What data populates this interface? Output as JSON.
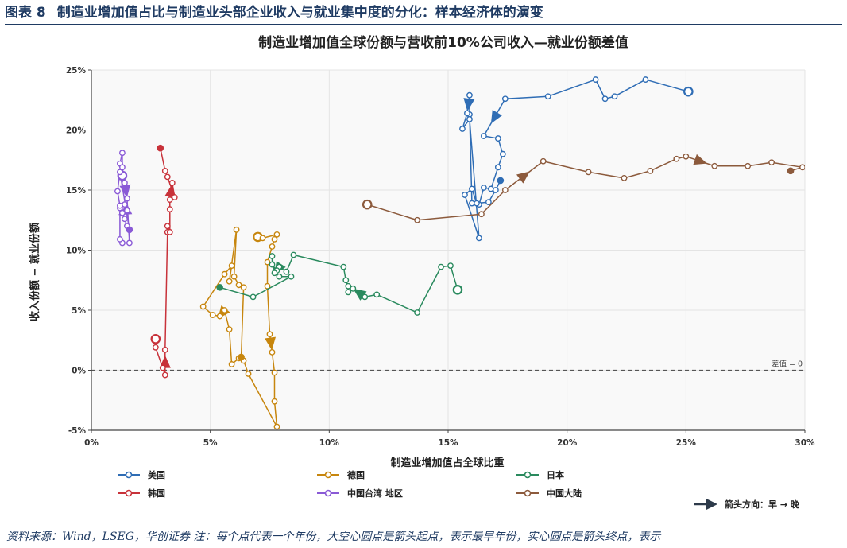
{
  "header": {
    "figure_label": "图表 8",
    "figure_title": "制造业增加值占比与制造业头部企业收入与就业集中度的分化：样本经济体的演变"
  },
  "footer": {
    "source_text": "资料来源：Wind，LSEG，华创证券   注：每个点代表一个年份，大空心圆点是箭头起点，表示最早年份，实心圆点是箭头终点，表示"
  },
  "colors": {
    "us": "#2f6db5",
    "de": "#c7860e",
    "jp": "#2a8a5e",
    "kr": "#c8323a",
    "tw": "#8a5ad6",
    "cn": "#8c5a3c",
    "zero_line": "#555555",
    "plot_bg": "#f9f9f9",
    "grid": "#e4e4e4"
  },
  "chart_data": {
    "type": "line",
    "title": "制造业增加值全球份额与营收前10%公司收入—就业份额差值",
    "xlabel": "制造业增加值占全球比重",
    "ylabel": "收入份额 − 就业份额",
    "xlim": [
      0,
      30
    ],
    "ylim": [
      -5,
      25
    ],
    "x_ticks": [
      "0%",
      "5%",
      "10%",
      "15%",
      "20%",
      "25%",
      "30%"
    ],
    "y_ticks": [
      "-5%",
      "0%",
      "5%",
      "10%",
      "15%",
      "20%",
      "25%"
    ],
    "grid": true,
    "reference_line": {
      "y": 0,
      "label": "差值 = 0"
    },
    "arrow_note": "箭头方向：早 → 晚",
    "legend_position": "bottom",
    "series": [
      {
        "name": "美国",
        "color_key": "us",
        "x": [
          25.1,
          23.3,
          22.0,
          21.6,
          21.2,
          19.2,
          17.4,
          16.5,
          17.1,
          17.3,
          17.1,
          16.8,
          16.5,
          16.3,
          16.0,
          15.9,
          15.9,
          15.8,
          15.6,
          15.9,
          16.3,
          15.7,
          16.0,
          16.2,
          16.7,
          17.0,
          17.2
        ],
        "y": [
          23.2,
          24.2,
          22.8,
          22.6,
          24.2,
          22.8,
          22.6,
          19.5,
          19.3,
          18.0,
          16.9,
          15.1,
          15.2,
          13.8,
          13.9,
          21.3,
          22.9,
          21.4,
          20.1,
          20.9,
          11.0,
          14.6,
          15.1,
          13.9,
          14.0,
          15.0,
          15.8
        ]
      },
      {
        "name": "德国",
        "color_key": "de",
        "x": [
          7.0,
          7.2,
          7.8,
          7.7,
          7.6,
          7.4,
          7.4,
          7.5,
          7.6,
          7.7,
          7.7,
          7.8,
          6.6,
          6.4,
          6.2,
          5.9,
          5.8,
          5.6,
          5.4,
          5.1,
          4.7,
          5.6,
          5.9,
          5.8,
          6.1,
          6.0,
          6.2,
          6.4,
          6.3
        ],
        "y": [
          11.1,
          11.0,
          11.3,
          10.9,
          10.3,
          9.0,
          7.0,
          3.0,
          1.5,
          -0.2,
          -2.6,
          -4.7,
          -0.3,
          0.8,
          1.0,
          0.5,
          3.4,
          5.0,
          4.5,
          4.6,
          5.3,
          8.0,
          8.7,
          7.4,
          11.7,
          7.8,
          7.1,
          6.9,
          1.1
        ]
      },
      {
        "name": "日本",
        "color_key": "jp",
        "x": [
          15.4,
          15.1,
          14.7,
          13.7,
          12.0,
          11.5,
          11.0,
          10.8,
          10.8,
          10.7,
          10.6,
          8.5,
          8.2,
          7.9,
          7.8,
          7.6,
          7.6,
          7.7,
          7.9,
          8.4,
          6.8,
          5.4
        ],
        "y": [
          6.7,
          8.7,
          8.6,
          4.8,
          6.3,
          6.1,
          6.8,
          6.5,
          7.0,
          7.5,
          8.6,
          9.6,
          8.2,
          8.6,
          8.3,
          8.8,
          9.5,
          8.1,
          7.8,
          7.8,
          6.1,
          6.9
        ]
      },
      {
        "name": "韩国",
        "color_key": "kr",
        "x": [
          2.7,
          2.7,
          3.0,
          3.1,
          3.1,
          3.2,
          3.2,
          3.3,
          3.3,
          3.3,
          3.4,
          3.5,
          3.2,
          3.1,
          2.9
        ],
        "y": [
          2.6,
          1.9,
          0.2,
          -0.4,
          1.7,
          11.5,
          12.0,
          11.5,
          13.4,
          14.2,
          15.6,
          14.4,
          16.1,
          16.6,
          18.5
        ]
      },
      {
        "name": "中国台湾 地区",
        "color_key": "tw",
        "x": [
          1.3,
          1.2,
          1.3,
          1.3,
          1.4,
          1.5,
          1.6,
          1.3,
          1.2,
          1.2,
          1.4,
          1.5,
          1.3,
          1.4,
          1.5,
          1.2,
          1.1,
          1.2,
          1.6
        ],
        "y": [
          16.2,
          17.2,
          18.1,
          16.9,
          15.6,
          14.3,
          10.6,
          10.6,
          10.9,
          13.5,
          13.8,
          13.3,
          13.1,
          12.6,
          12.0,
          13.7,
          14.9,
          16.5,
          11.7
        ]
      },
      {
        "name": "中国大陆",
        "color_key": "cn",
        "x": [
          11.6,
          13.7,
          16.4,
          17.4,
          19.0,
          20.9,
          22.4,
          23.5,
          24.6,
          25.0,
          26.2,
          27.6,
          28.6,
          29.9,
          29.4
        ],
        "y": [
          13.8,
          12.5,
          13.0,
          15.0,
          17.4,
          16.5,
          16.0,
          16.6,
          17.6,
          17.8,
          17.0,
          17.0,
          17.3,
          16.9,
          16.6
        ]
      }
    ]
  }
}
